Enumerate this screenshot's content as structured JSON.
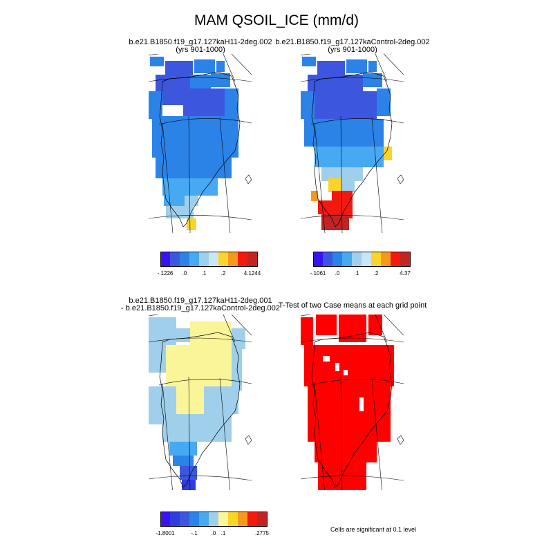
{
  "title": "MAM QSOIL_ICE (mm/d)",
  "panels": [
    {
      "id": "top-left",
      "title_lines": [
        "b.e21.B1850.f19_g17.127kaH11-2deg.002",
        "(yrs 901-1000)"
      ],
      "colorbar": {
        "colors": [
          "#3b12f2",
          "#3c57dd",
          "#2b83e8",
          "#47a9f2",
          "#9fcfea",
          "#c9e7f2",
          "#fbd42a",
          "#f39a1a",
          "#f4190f",
          "#c22424"
        ],
        "tick_labels": [
          "-.1226",
          ".0",
          ".1",
          ".2",
          "4.1244"
        ]
      }
    },
    {
      "id": "top-right",
      "title_lines": [
        "b.e21.B1850.f19_g17.127kaControl-2deg.002",
        "(yrs 901-1000)"
      ],
      "colorbar": {
        "colors": [
          "#3b12f2",
          "#3c57dd",
          "#2b83e8",
          "#47a9f2",
          "#9fcfea",
          "#c9e7f2",
          "#fbd42a",
          "#f39a1a",
          "#f4190f",
          "#c22424"
        ],
        "tick_labels": [
          "-.1061",
          ".0",
          ".1",
          ".2",
          "4.37"
        ]
      }
    },
    {
      "id": "bottom-left",
      "title_lines": [
        "b.e21.B1850.f19_g17.127kaH11-2deg.001",
        "- b.e21.B1850.f19_g17.127kaControl-2deg.002"
      ],
      "colorbar": {
        "colors": [
          "#3b12f2",
          "#2f3ce0",
          "#3c57dd",
          "#2b83e8",
          "#47a9f2",
          "#9fcfea",
          "#fbf59a",
          "#fbd42a",
          "#f39a1a",
          "#f4190f",
          "#c22424"
        ],
        "tick_labels": [
          "-1.8001",
          "-.1",
          ".0",
          ".1",
          ".2775"
        ]
      }
    },
    {
      "id": "bottom-right",
      "title_lines": [
        "T-Test of two Case means at each grid point"
      ],
      "note": "Cells are significant at 0.1 level",
      "sig_color": "#ff0000"
    }
  ]
}
